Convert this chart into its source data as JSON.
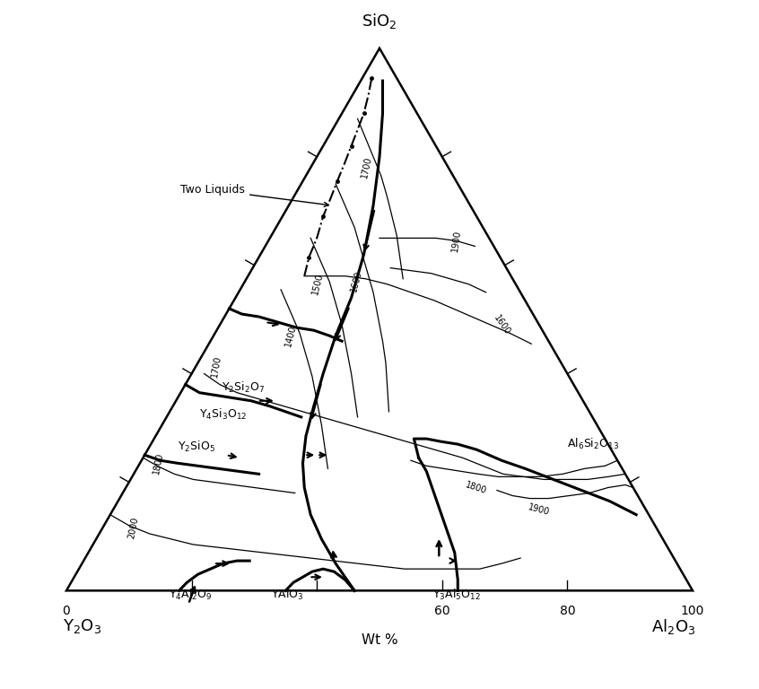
{
  "bg_color": "#ffffff",
  "line_color": "#000000",
  "figsize": [
    8.46,
    7.68
  ],
  "dpi": 100
}
